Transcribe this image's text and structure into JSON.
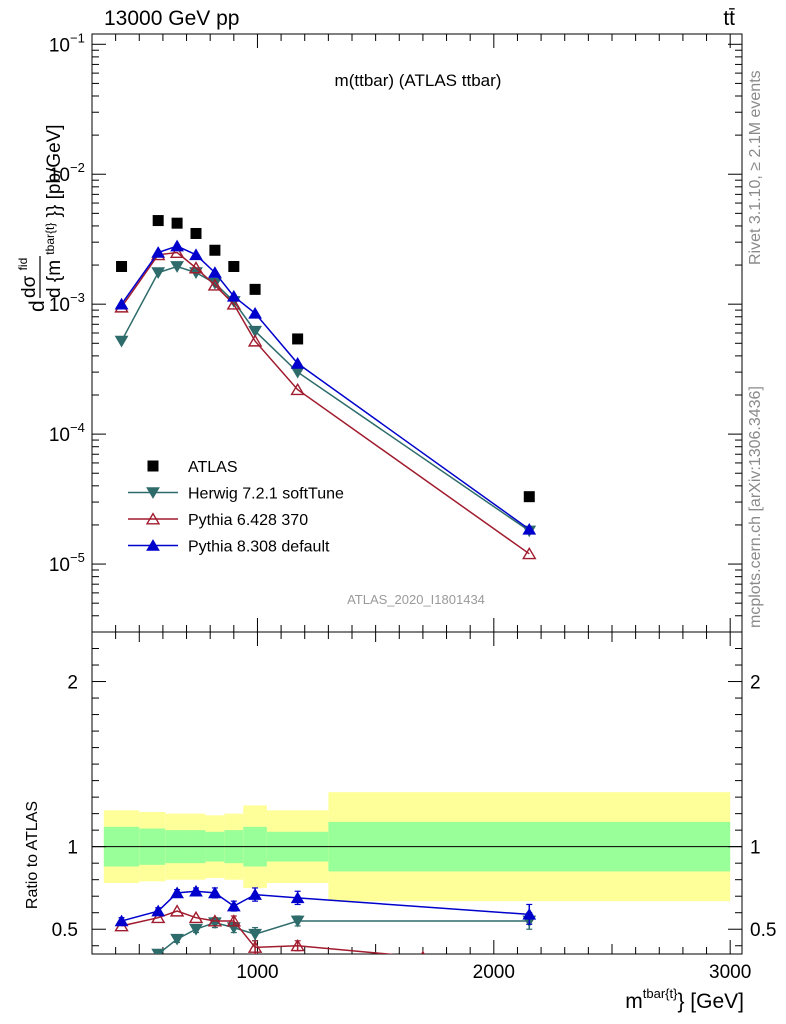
{
  "header": {
    "left": "13000 GeV pp",
    "right": "tt̄"
  },
  "side_labels": {
    "top": "Rivet 3.1.10, ≥ 2.1M events",
    "bottom": "mcplots.cern.ch [arXiv:1306.3436]"
  },
  "chart_data": [
    {
      "type": "scatter",
      "title": "m(ttbar) (ATLAS ttbar)",
      "watermark": "ATLAS_2020_I1801434",
      "ylabel": "dσ/d {m_{tbar{t}}} [pb/GeV]",
      "ylabel_parts": {
        "d": "d",
        "num": "dσ",
        "sup": "fid",
        "den": "d {m",
        "sub": "tbar{t}",
        "tail": "}} [pb/GeV]"
      },
      "yscale": "log",
      "ylim": [
        3e-06,
        0.12
      ],
      "xlim": [
        300,
        3050
      ],
      "ytick_labels": [
        {
          "base": "10",
          "exp": "−5",
          "value": 1e-05
        },
        {
          "base": "10",
          "exp": "−4",
          "value": 0.0001
        },
        {
          "base": "10",
          "exp": "−3",
          "value": 0.001
        },
        {
          "base": "10",
          "exp": "−2",
          "value": 0.01
        },
        {
          "base": "10",
          "exp": "−1",
          "value": 0.1
        }
      ],
      "legend_position": "bottom-left",
      "series": [
        {
          "name": "ATLAS",
          "marker": "square",
          "color": "#000000",
          "x": [
            425,
            580,
            660,
            740,
            820,
            900,
            990,
            1170,
            2150
          ],
          "y": [
            0.00195,
            0.0044,
            0.0042,
            0.0035,
            0.0026,
            0.00195,
            0.0013,
            0.00054,
            3.3e-05
          ]
        },
        {
          "name": "Herwig 7.2.1 softTune",
          "marker": "triangle-down",
          "color": "#2e6b6b",
          "x": [
            425,
            580,
            660,
            740,
            820,
            900,
            990,
            1170,
            2150
          ],
          "y": [
            0.00052,
            0.00175,
            0.00195,
            0.00175,
            0.00145,
            0.00105,
            0.00062,
            0.0003,
            1.8e-05
          ]
        },
        {
          "name": "Pythia 6.428 370",
          "marker": "triangle-open",
          "color": "#a01c2e",
          "x": [
            425,
            580,
            660,
            740,
            820,
            900,
            990,
            1170,
            2150
          ],
          "y": [
            0.00095,
            0.0024,
            0.0025,
            0.0019,
            0.0014,
            0.001,
            0.00052,
            0.00022,
            1.2e-05
          ]
        },
        {
          "name": "Pythia 8.308 default",
          "marker": "triangle-up",
          "color": "#0000cc",
          "x": [
            425,
            580,
            660,
            740,
            820,
            900,
            990,
            1170,
            2150
          ],
          "y": [
            0.001,
            0.0025,
            0.0028,
            0.0024,
            0.00175,
            0.00115,
            0.00085,
            0.00035,
            1.85e-05
          ]
        }
      ]
    },
    {
      "type": "line",
      "ylabel": "Ratio to ATLAS",
      "xlabel": "m^{tbar{t}} [GeV]",
      "xlabel_parts": {
        "base": "m",
        "sup": "tbar{t}",
        "tail": "} [GeV]"
      },
      "xlim": [
        300,
        3050
      ],
      "ylim": [
        0.35,
        2.3
      ],
      "xtick_labels": [
        "1000",
        "2000",
        "3000"
      ],
      "xtick_values": [
        1000,
        2000,
        3000
      ],
      "ytick_labels": [
        "0.5",
        "1",
        "2"
      ],
      "ytick_values": [
        0.5,
        1,
        2
      ],
      "bands": [
        {
          "x0": 350,
          "x1": 500,
          "stat": 0.12,
          "total": 0.22
        },
        {
          "x0": 500,
          "x1": 610,
          "stat": 0.11,
          "total": 0.21
        },
        {
          "x0": 610,
          "x1": 700,
          "stat": 0.1,
          "total": 0.2
        },
        {
          "x0": 700,
          "x1": 780,
          "stat": 0.1,
          "total": 0.2
        },
        {
          "x0": 780,
          "x1": 860,
          "stat": 0.09,
          "total": 0.19
        },
        {
          "x0": 860,
          "x1": 940,
          "stat": 0.1,
          "total": 0.2
        },
        {
          "x0": 940,
          "x1": 1040,
          "stat": 0.12,
          "total": 0.25
        },
        {
          "x0": 1040,
          "x1": 1300,
          "stat": 0.09,
          "total": 0.22
        },
        {
          "x0": 1300,
          "x1": 3000,
          "stat": 0.15,
          "total": 0.33
        }
      ],
      "series": [
        {
          "name": "Herwig 7.2.1 softTune",
          "marker": "triangle-down",
          "color": "#2e6b6b",
          "x": [
            580,
            660,
            740,
            820,
            900,
            990,
            1170,
            2150
          ],
          "y": [
            0.35,
            0.44,
            0.5,
            0.54,
            0.51,
            0.47,
            0.55,
            0.55
          ],
          "err": [
            0.0,
            0.02,
            0.02,
            0.03,
            0.03,
            0.04,
            0.03,
            0.05
          ]
        },
        {
          "name": "Pythia 6.428 370",
          "marker": "triangle-open",
          "color": "#a01c2e",
          "x": [
            425,
            580,
            660,
            740,
            820,
            900,
            990,
            1170,
            1700
          ],
          "y": [
            0.52,
            0.57,
            0.61,
            0.57,
            0.55,
            0.55,
            0.39,
            0.4,
            0.33
          ],
          "err": [
            0.0,
            0.0,
            0.0,
            0.0,
            0.0,
            0.03,
            0.04,
            0.03,
            0.0
          ]
        },
        {
          "name": "Pythia 8.308 default",
          "marker": "triangle-up",
          "color": "#0000cc",
          "x": [
            425,
            580,
            660,
            740,
            820,
            900,
            990,
            1170,
            2150
          ],
          "y": [
            0.55,
            0.61,
            0.72,
            0.73,
            0.72,
            0.64,
            0.71,
            0.69,
            0.59
          ],
          "err": [
            0.02,
            0.02,
            0.02,
            0.02,
            0.03,
            0.03,
            0.04,
            0.04,
            0.06
          ]
        }
      ]
    }
  ]
}
